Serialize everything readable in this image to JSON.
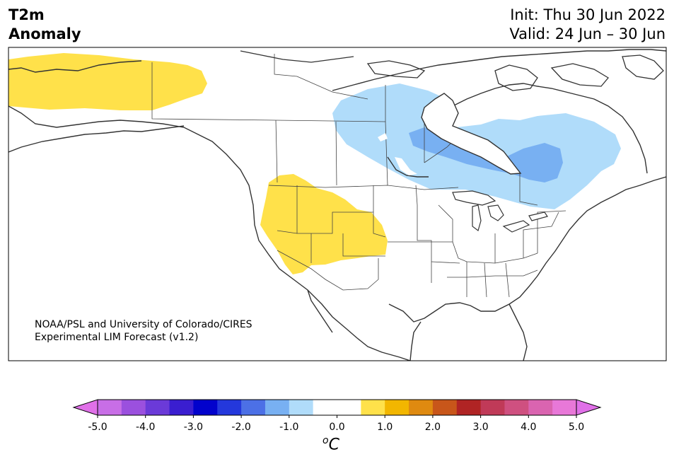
{
  "title": {
    "line1": "T2m",
    "line2": "Anomaly"
  },
  "dates": {
    "init": "Init: Thu 30 Jun 2022",
    "valid": "Valid: 24 Jun – 30 Jun"
  },
  "credit": {
    "line1": "NOAA/PSL and University of Colorado/CIRES",
    "line2": "Experimental LIM Forecast (v1.2)"
  },
  "colorbar": {
    "unit_base": "C",
    "unit_sup": "o",
    "ticks": [
      "-5.0",
      "-4.0",
      "-3.0",
      "-2.0",
      "-1.0",
      "0.0",
      "1.0",
      "2.0",
      "3.0",
      "4.0",
      "5.0"
    ],
    "colors": [
      "#c86ee6",
      "#9b50de",
      "#6b3ad8",
      "#3a1ed0",
      "#0202cc",
      "#2438dc",
      "#4c70e6",
      "#78b0f2",
      "#b0dcfa",
      "#ffffff",
      "#ffffff",
      "#ffe14a",
      "#f2b600",
      "#df8a10",
      "#c8561a",
      "#b02424",
      "#c03a58",
      "#cf5080",
      "#da64b0",
      "#e878d8"
    ],
    "under_color": "#e070e8",
    "over_color": "#e070e8"
  },
  "map": {
    "region": "North America",
    "anomaly_colors": {
      "warm": "#ffe14a",
      "cool_light": "#b0dcfa",
      "cool_mid": "#78b0f2"
    }
  }
}
